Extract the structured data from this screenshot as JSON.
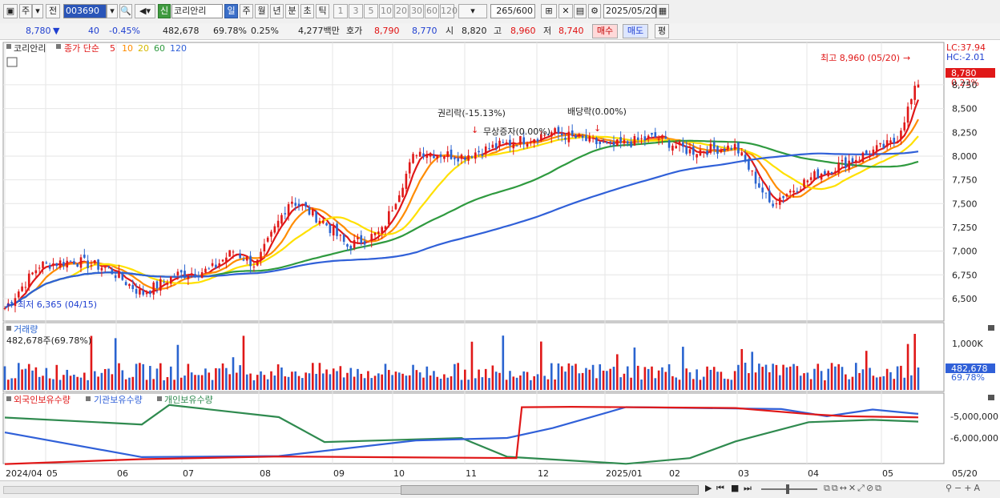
{
  "toolbar": {
    "market": "주",
    "prev_label": "전",
    "code": "003690",
    "new_label": "신",
    "name": "코리안리",
    "periods": [
      "일",
      "주",
      "월",
      "년",
      "분",
      "초",
      "틱"
    ],
    "selected_period": "일",
    "intervals": [
      "1",
      "3",
      "5",
      "10",
      "20",
      "30",
      "60",
      "120"
    ],
    "count": "265",
    "count_total": "/600",
    "date": "2025/05/20"
  },
  "info": {
    "price": "8,780",
    "change": "40",
    "change_pct": "-0.45%",
    "volume": "482,678",
    "volume_ratio": "69.78%",
    "turnover_ratio": "0.25%",
    "amount": "4,277백만",
    "bid_label": "호가",
    "ask_price": "8,790",
    "bid_price": "8,770",
    "open_label": "시",
    "open": "8,820",
    "high_label": "고",
    "high": "8,960",
    "low_label": "저",
    "low": "8,740",
    "buy_label": "매수",
    "sell_label": "매도",
    "eval_label": "평"
  },
  "price_panel": {
    "stock_label": "코리안리",
    "legend_prefix": "종가 단순",
    "ma_periods": [
      "5",
      "10",
      "20",
      "60",
      "120"
    ],
    "ma_colors": [
      "#e01818",
      "#ff8c00",
      "#ffe000",
      "#2f9a3f",
      "#3060d8"
    ],
    "lc": "LC:37.94",
    "hc": "HC:-2.01",
    "last_price": "8,780",
    "last_pct": "0.23%",
    "max_note": "최고 8,960 (05/20)",
    "min_note": "최저 6,365 (04/15)",
    "event_rights": "권리락(-15.13%)",
    "event_bonus": "무상증자(0.00%)",
    "event_dividend": "배당락(0.00%)",
    "y_ticks": [
      "8,750",
      "8,500",
      "8,250",
      "8,000",
      "7,750",
      "7,500",
      "7,250",
      "7,000",
      "6,750",
      "6,500"
    ]
  },
  "volume_panel": {
    "title": "거래량",
    "value_note": "482,678주(69.78%)",
    "y_tick": "1,000K",
    "last_value": "482,678",
    "last_pct": "69.78%"
  },
  "holding_panel": {
    "legend": [
      "외국인보유수량",
      "기관보유수량",
      "개인보유수량"
    ],
    "colors": [
      "#e01818",
      "#3060d8",
      "#2f8a4f"
    ],
    "y_ticks": [
      "-5,000,000",
      "-6,000,000"
    ]
  },
  "x_axis": [
    "2024/04",
    "05",
    "06",
    "07",
    "08",
    "09",
    "10",
    "11",
    "12",
    "2025/01",
    "02",
    "03",
    "04",
    "05"
  ],
  "x_axis_right": "05/20"
}
